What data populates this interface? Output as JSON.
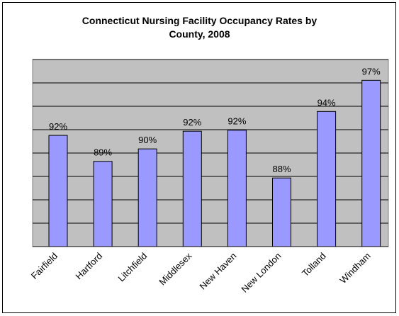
{
  "chart_data": {
    "type": "bar",
    "title": "Connecticut Nursing Facility Occupancy Rates by County, 2008",
    "categories": [
      "Fairfield",
      "Hartford",
      "Litchfield",
      "Middlesex",
      "New Haven",
      "New London",
      "Tolland",
      "Windham"
    ],
    "values": [
      91.7,
      89.2,
      90.4,
      92.1,
      92.2,
      87.6,
      94.0,
      97.0
    ],
    "value_labels": [
      "92%",
      "89%",
      "90%",
      "92%",
      "92%",
      "88%",
      "94%",
      "97%"
    ],
    "color": "#9999ff",
    "ylim": [
      81,
      99
    ],
    "yticks": [
      81,
      83.25,
      85.5,
      87.75,
      90,
      92.25,
      94.5,
      96.75,
      99
    ],
    "grid": true
  }
}
